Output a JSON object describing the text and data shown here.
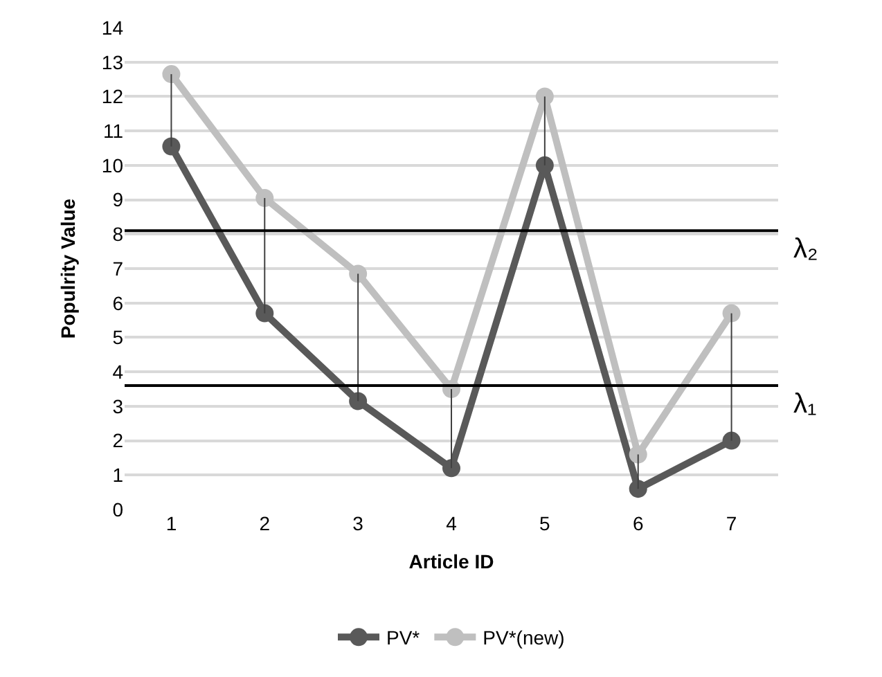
{
  "chart_data": {
    "type": "line",
    "xlabel": "Article ID",
    "ylabel": "Populrity Value",
    "categories": [
      "1",
      "2",
      "3",
      "4",
      "5",
      "6",
      "7"
    ],
    "series": [
      {
        "name": "PV*",
        "color": "#595959",
        "values": [
          10.55,
          5.7,
          3.15,
          1.2,
          10,
          0.6,
          2
        ],
        "errors": [
          [
            10.55,
            12.65
          ],
          [
            5.7,
            9.05
          ],
          [
            3.15,
            6.85
          ],
          [
            1.2,
            3.5
          ],
          [
            10,
            12
          ],
          [
            0.6,
            1.6
          ],
          [
            2,
            5.7
          ]
        ]
      },
      {
        "name": "PV*(new)",
        "color": "#bfbfbf",
        "values": [
          12.65,
          9.05,
          6.85,
          3.5,
          12,
          1.6,
          5.7
        ]
      }
    ],
    "ylim": [
      0,
      14
    ],
    "yticks": [
      0,
      1,
      2,
      3,
      4,
      5,
      6,
      7,
      8,
      9,
      10,
      11,
      12,
      13,
      14
    ],
    "ref_lines": [
      {
        "axis": "y",
        "value": 8.1,
        "label": "λ₂",
        "color": "#000000"
      },
      {
        "axis": "y",
        "value": 3.6,
        "label": "λ₁",
        "color": "#000000"
      }
    ],
    "grid": "y",
    "legend": "bottom",
    "marker": "circle",
    "line_style": "solid"
  }
}
